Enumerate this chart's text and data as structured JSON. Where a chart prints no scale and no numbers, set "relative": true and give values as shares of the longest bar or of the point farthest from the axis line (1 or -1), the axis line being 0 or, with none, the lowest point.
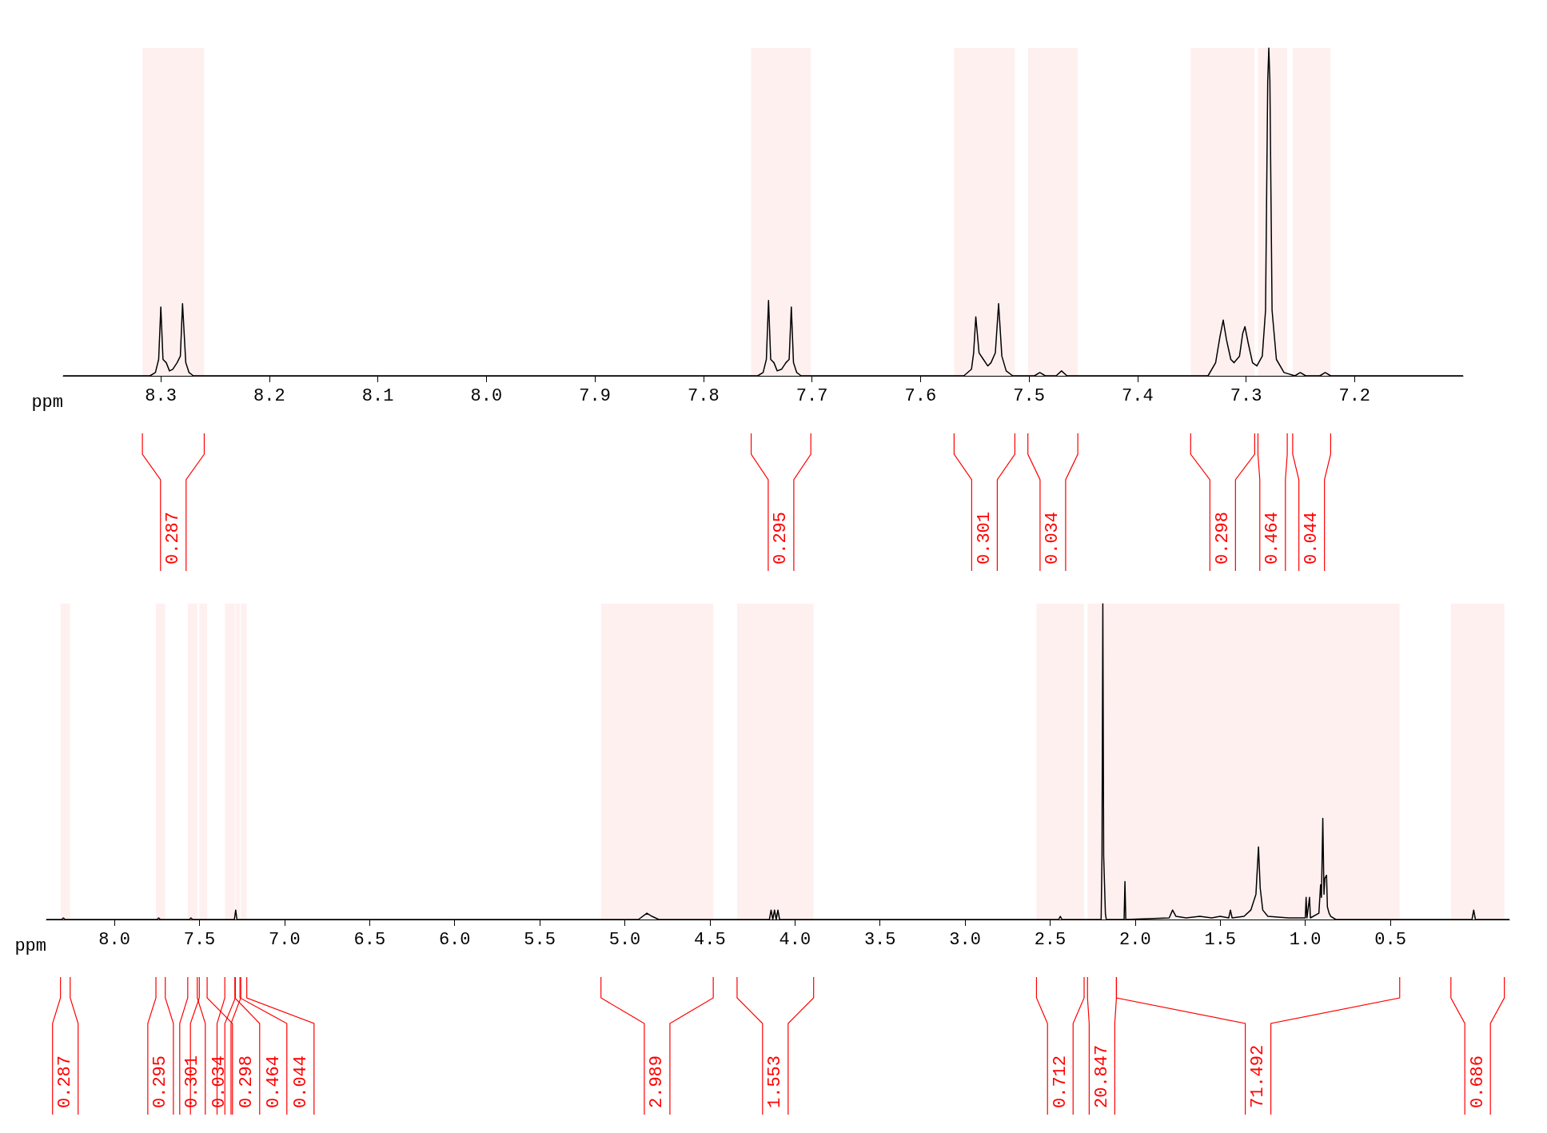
{
  "chart_data": [
    {
      "type": "line",
      "relative": true,
      "xlabel": "ppm",
      "xlim": [
        8.39,
        7.1
      ],
      "xticks": [
        8.3,
        8.2,
        8.1,
        {
          "value": 8.0,
          "label": "8.0"
        },
        7.9,
        7.8,
        7.7,
        7.6,
        7.5,
        7.4,
        7.3,
        7.2
      ],
      "grid": false,
      "marker": "none",
      "tick_labels": "x",
      "series": [
        {
          "color": "#000000",
          "x": [
            8.39,
            8.31,
            8.305,
            8.302,
            8.3,
            8.298,
            8.295,
            8.292,
            8.289,
            8.285,
            8.282,
            8.28,
            8.277,
            8.274,
            8.27,
            7.75,
            7.745,
            7.742,
            7.74,
            7.738,
            7.735,
            7.732,
            7.728,
            7.724,
            7.721,
            7.719,
            7.717,
            7.714,
            7.71,
            7.56,
            7.553,
            7.551,
            7.549,
            7.546,
            7.542,
            7.538,
            7.535,
            7.531,
            7.528,
            7.525,
            7.521,
            7.515,
            7.495,
            7.49,
            7.485,
            7.475,
            7.47,
            7.465,
            7.335,
            7.328,
            7.324,
            7.321,
            7.318,
            7.314,
            7.311,
            7.306,
            7.303,
            7.301,
            7.298,
            7.294,
            7.29,
            7.285,
            7.282,
            7.28,
            7.279,
            7.278,
            7.276,
            7.272,
            7.265,
            7.255,
            7.25,
            7.245,
            7.232,
            7.227,
            7.222,
            7.1
          ],
          "values": [
            0,
            0,
            0.01,
            0.05,
            0.21,
            0.05,
            0.04,
            0.015,
            0.02,
            0.04,
            0.06,
            0.22,
            0.04,
            0.01,
            0,
            0,
            0.01,
            0.05,
            0.23,
            0.05,
            0.04,
            0.015,
            0.02,
            0.04,
            0.05,
            0.21,
            0.04,
            0.01,
            0,
            0,
            0.02,
            0.07,
            0.18,
            0.07,
            0.05,
            0.03,
            0.04,
            0.07,
            0.22,
            0.06,
            0.015,
            0,
            0,
            0.01,
            0,
            0,
            0.015,
            0,
            0,
            0.04,
            0.12,
            0.17,
            0.11,
            0.05,
            0.04,
            0.06,
            0.13,
            0.15,
            0.1,
            0.04,
            0.03,
            0.06,
            0.2,
            0.9,
            1,
            0.9,
            0.2,
            0.05,
            0.01,
            0,
            0.01,
            0,
            0,
            0.01,
            0,
            0
          ]
        }
      ],
      "bands": [
        {
          "axis": "x",
          "from": 8.317,
          "to": 8.26,
          "label": "0.287",
          "color": "#ff0000"
        },
        {
          "axis": "x",
          "from": 7.756,
          "to": 7.701,
          "label": "0.295",
          "color": "#ff0000"
        },
        {
          "axis": "x",
          "from": 7.569,
          "to": 7.513,
          "label": "0.301",
          "color": "#ff0000"
        },
        {
          "axis": "x",
          "from": 7.501,
          "to": 7.455,
          "label": "0.034",
          "color": "#ff0000"
        },
        {
          "axis": "x",
          "from": 7.351,
          "to": 7.292,
          "label": "0.298",
          "color": "#ff0000"
        },
        {
          "axis": "x",
          "from": 7.289,
          "to": 7.262,
          "label": "0.464",
          "color": "#ff0000"
        },
        {
          "axis": "x",
          "from": 7.257,
          "to": 7.222,
          "label": "0.044",
          "color": "#ff0000"
        }
      ]
    },
    {
      "type": "line",
      "relative": true,
      "xlabel": "ppm",
      "xlim": [
        8.4,
        -0.2
      ],
      "xticks": [
        {
          "value": 8.0,
          "label": "8.0"
        },
        7.5,
        {
          "value": 7.0,
          "label": "7.0"
        },
        6.5,
        {
          "value": 6.0,
          "label": "6.0"
        },
        5.5,
        {
          "value": 5.0,
          "label": "5.0"
        },
        4.5,
        {
          "value": 4.0,
          "label": "4.0"
        },
        3.5,
        {
          "value": 3.0,
          "label": "3.0"
        },
        2.5,
        {
          "value": 2.0,
          "label": "2.0"
        },
        1.5,
        {
          "value": 1.0,
          "label": "1.0"
        },
        0.5
      ],
      "grid": false,
      "marker": "none",
      "tick_labels": "x",
      "series": [
        {
          "color": "#000000",
          "x": [
            8.4,
            8.31,
            8.3,
            8.29,
            7.75,
            7.74,
            7.73,
            7.56,
            7.55,
            7.54,
            7.295,
            7.287,
            7.28,
            4.92,
            4.87,
            4.84,
            4.8,
            4.15,
            4.14,
            4.13,
            4.12,
            4.11,
            4.1,
            4.09,
            2.45,
            2.44,
            2.43,
            2.2,
            2.195,
            2.19,
            2.185,
            2.175,
            2.17,
            2.065,
            2.06,
            2.055,
            1.8,
            1.78,
            1.76,
            1.7,
            1.62,
            1.55,
            1.5,
            1.45,
            1.44,
            1.43,
            1.36,
            1.32,
            1.29,
            1.275,
            1.265,
            1.25,
            1.22,
            1.1,
            1.0,
            0.995,
            0.99,
            0.975,
            0.97,
            0.92,
            0.91,
            0.905,
            0.897,
            0.89,
            0.885,
            0.875,
            0.87,
            0.86,
            0.85,
            0.82,
            0.02,
            0.01,
            0.0,
            -0.2
          ],
          "values": [
            0,
            0,
            0.005,
            0,
            0,
            0.005,
            0,
            0,
            0.005,
            0,
            0,
            0.03,
            0,
            0,
            0.02,
            0.01,
            0,
            0,
            0.03,
            0,
            0.03,
            0,
            0.03,
            0,
            0,
            0.01,
            0,
            0,
            0.2,
            1,
            0.2,
            0.02,
            0,
            0,
            0.12,
            0,
            0.005,
            0.03,
            0.01,
            0.005,
            0.01,
            0.005,
            0.01,
            0.005,
            0.03,
            0.005,
            0.01,
            0.03,
            0.08,
            0.23,
            0.1,
            0.03,
            0.01,
            0.005,
            0.005,
            0.07,
            0.005,
            0.07,
            0.005,
            0.02,
            0.11,
            0.07,
            0.32,
            0.08,
            0.13,
            0.14,
            0.04,
            0.02,
            0.01,
            0,
            0,
            0.03,
            0,
            0
          ]
        }
      ],
      "bands": [
        {
          "axis": "x",
          "from": 8.317,
          "to": 8.26,
          "label": "0.287",
          "color": "#ff0000"
        },
        {
          "axis": "x",
          "from": 7.756,
          "to": 7.701,
          "label": "0.295",
          "color": "#ff0000"
        },
        {
          "axis": "x",
          "from": 7.569,
          "to": 7.513,
          "label": "0.301",
          "color": "#ff0000"
        },
        {
          "axis": "x",
          "from": 7.501,
          "to": 7.455,
          "label": "0.034",
          "color": "#ff0000"
        },
        {
          "axis": "x",
          "from": 7.351,
          "to": 7.292,
          "label": "0.298",
          "color": "#ff0000"
        },
        {
          "axis": "x",
          "from": 7.289,
          "to": 7.262,
          "label": "0.464",
          "color": "#ff0000"
        },
        {
          "axis": "x",
          "from": 7.257,
          "to": 7.222,
          "label": "0.044",
          "color": "#ff0000"
        },
        {
          "axis": "x",
          "from": 5.14,
          "to": 4.48,
          "label": "2.989",
          "color": "#ff0000"
        },
        {
          "axis": "x",
          "from": 4.34,
          "to": 3.89,
          "label": "1.553",
          "color": "#ff0000"
        },
        {
          "axis": "x",
          "from": 2.58,
          "to": 2.3,
          "label": "0.712",
          "color": "#ff0000"
        },
        {
          "axis": "x",
          "from": 2.28,
          "to": 2.11,
          "label": "20.847",
          "color": "#ff0000"
        },
        {
          "axis": "x",
          "from": 2.11,
          "to": 0.445,
          "label": "71.492",
          "color": "#ff0000"
        },
        {
          "axis": "x",
          "from": 0.144,
          "to": -0.17,
          "label": "0.686",
          "color": "#ff0000"
        }
      ]
    }
  ]
}
